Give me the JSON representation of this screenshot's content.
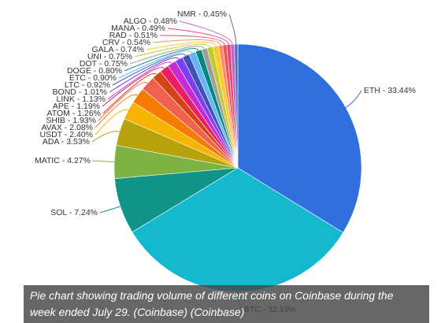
{
  "chart_data": {
    "type": "pie",
    "title": "",
    "slices": [
      {
        "label": "ETH - 33.44%",
        "value": 33.44,
        "color": "#2f6fde"
      },
      {
        "label": "BTC - 32.19%",
        "value": 32.19,
        "color": "#14b8cf"
      },
      {
        "label": "SOL - 7.24%",
        "value": 7.24,
        "color": "#109488"
      },
      {
        "label": "MATIC - 4.27%",
        "value": 4.27,
        "color": "#7cb342"
      },
      {
        "label": "ADA - 3.53%",
        "value": 3.53,
        "color": "#b7a20b"
      },
      {
        "label": "USDT - 2.40%",
        "value": 2.4,
        "color": "#f6b400"
      },
      {
        "label": "AVAX - 2.08%",
        "value": 2.08,
        "color": "#f57c00"
      },
      {
        "label": "SHIB - 1.93%",
        "value": 1.93,
        "color": "#f0624d"
      },
      {
        "label": "ATOM - 1.26%",
        "value": 1.26,
        "color": "#d84315"
      },
      {
        "label": "APE - 1.19%",
        "value": 1.19,
        "color": "#e91e63"
      },
      {
        "label": "LINK - 1.13%",
        "value": 1.13,
        "color": "#c62ad1"
      },
      {
        "label": "BOND - 1.01%",
        "value": 1.01,
        "color": "#7e3ff2"
      },
      {
        "label": "LTC - 0.92%",
        "value": 0.92,
        "color": "#3f51b5"
      },
      {
        "label": "ETC - 0.90%",
        "value": 0.9,
        "color": "#64b5f6"
      },
      {
        "label": "DOGE - 0.80%",
        "value": 0.8,
        "color": "#00897b"
      },
      {
        "label": "DOT - 0.75%",
        "value": 0.75,
        "color": "#9e9e9e"
      },
      {
        "label": "UNI - 0.75%",
        "value": 0.75,
        "color": "#c0ca33"
      },
      {
        "label": "GALA - 0.74%",
        "value": 0.74,
        "color": "#ffca28"
      },
      {
        "label": "CRV - 0.54%",
        "value": 0.54,
        "color": "#ff8a65"
      },
      {
        "label": "RAD - 0.51%",
        "value": 0.51,
        "color": "#ef5350"
      },
      {
        "label": "MANA - 0.49%",
        "value": 0.49,
        "color": "#ec407a"
      },
      {
        "label": "ALGO - 0.48%",
        "value": 0.48,
        "color": "#ba68c8"
      },
      {
        "label": "NMR - 0.45%",
        "value": 0.45,
        "color": "#5c6bc0"
      }
    ]
  },
  "caption": "Pie chart showing trading volume of different coins on Coinbase during the week ended July 29. (Coinbase) (Coinbase)"
}
